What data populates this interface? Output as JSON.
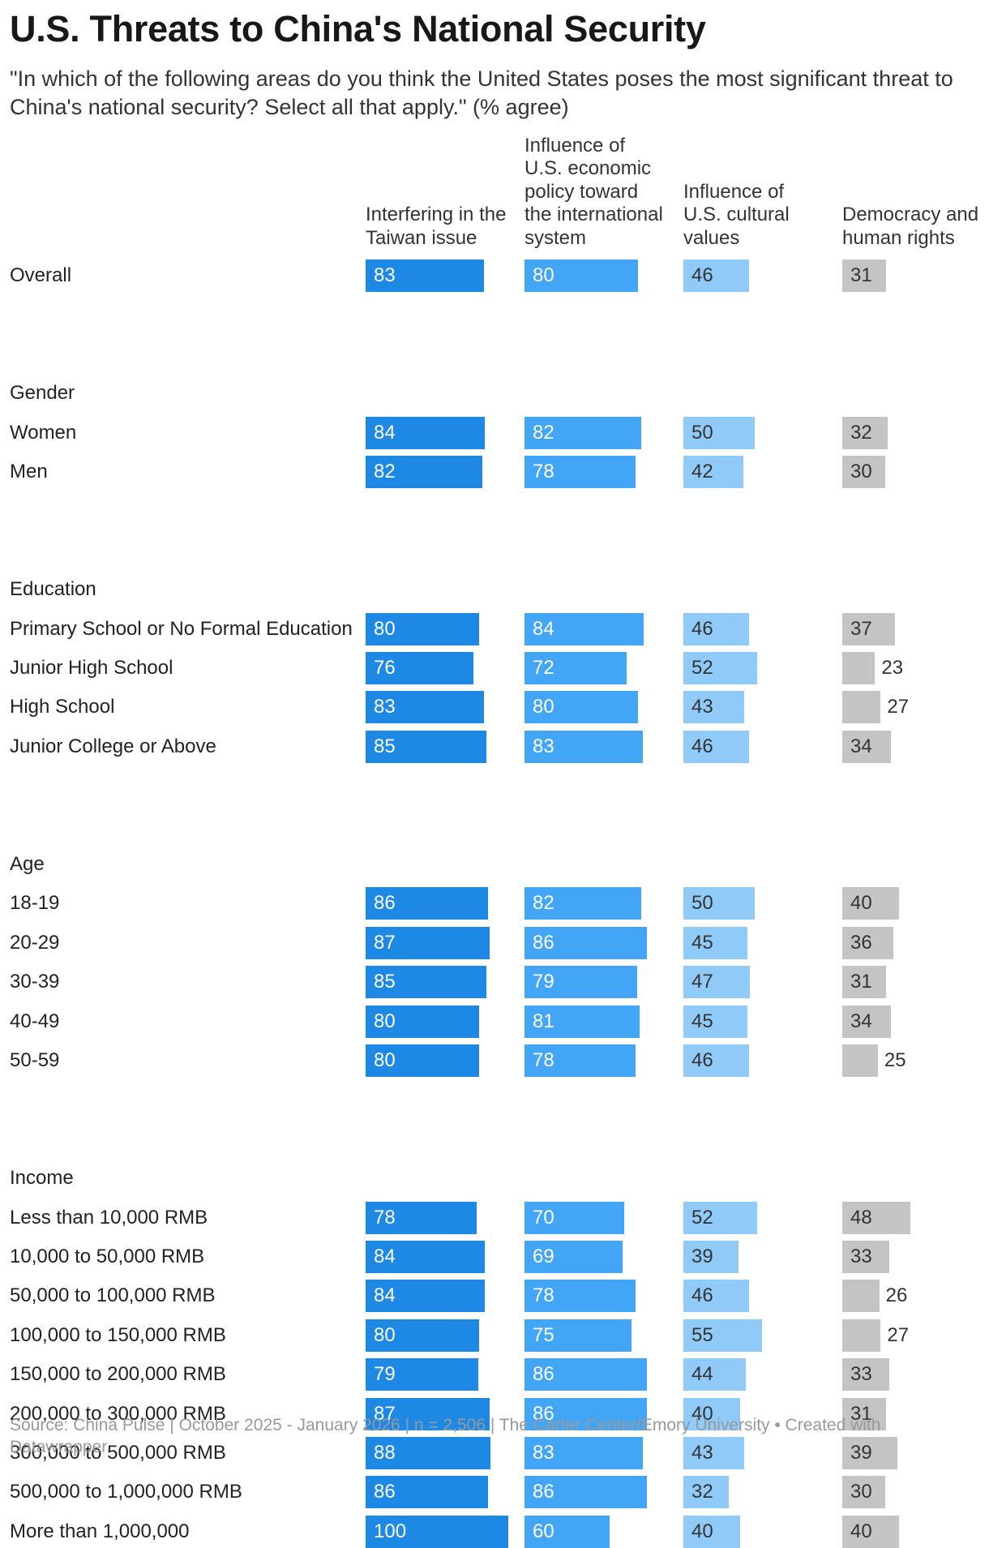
{
  "title": "U.S. Threats to China's National Security",
  "subtitle": "\"In which of the following areas do you think the United States poses the most significant threat to China's national security? Select all that apply.\" (% agree)",
  "footer": "Source: China Pulse | October 2025 - January 2026 | n = 2,506 | The Carter Center/Emory University • Created with Datawrapper",
  "chart_data": {
    "type": "bar",
    "layout": "small-multiples horizontal bars",
    "unit": "% agree",
    "series": [
      {
        "name": "Interfering in the Taiwan issue",
        "color": "#1e88e5",
        "text_color": "#ffffff"
      },
      {
        "name": "Influence of U.S. economic policy toward the international system",
        "color": "#42a5f5",
        "text_color": "#ffffff"
      },
      {
        "name": "Influence of U.S. cultural values",
        "color": "#90caf9",
        "text_color": "#333333"
      },
      {
        "name": "Democracy and human rights",
        "color": "#c4c4c4",
        "text_color": "#333333"
      }
    ],
    "groups": [
      {
        "label": "",
        "rows": [
          {
            "label": "Overall",
            "values": [
              83,
              80,
              46,
              31
            ]
          }
        ]
      },
      {
        "label": "Gender",
        "rows": [
          {
            "label": "Women",
            "values": [
              84,
              82,
              50,
              32
            ]
          },
          {
            "label": "Men",
            "values": [
              82,
              78,
              42,
              30
            ]
          }
        ]
      },
      {
        "label": "Education",
        "rows": [
          {
            "label": "Primary School or No Formal Education",
            "values": [
              80,
              84,
              46,
              37
            ]
          },
          {
            "label": "Junior High School",
            "values": [
              76,
              72,
              52,
              23
            ]
          },
          {
            "label": "High School",
            "values": [
              83,
              80,
              43,
              27
            ]
          },
          {
            "label": "Junior College or Above",
            "values": [
              85,
              83,
              46,
              34
            ]
          }
        ]
      },
      {
        "label": "Age",
        "rows": [
          {
            "label": "18-19",
            "values": [
              86,
              82,
              50,
              40
            ]
          },
          {
            "label": "20-29",
            "values": [
              87,
              86,
              45,
              36
            ]
          },
          {
            "label": "30-39",
            "values": [
              85,
              79,
              47,
              31
            ]
          },
          {
            "label": "40-49",
            "values": [
              80,
              81,
              45,
              34
            ]
          },
          {
            "label": "50-59",
            "values": [
              80,
              78,
              46,
              25
            ]
          }
        ]
      },
      {
        "label": "Income",
        "rows": [
          {
            "label": "Less than 10,000 RMB",
            "values": [
              78,
              70,
              52,
              48
            ]
          },
          {
            "label": "10,000 to 50,000 RMB",
            "values": [
              84,
              69,
              39,
              33
            ]
          },
          {
            "label": "50,000 to 100,000 RMB",
            "values": [
              84,
              78,
              46,
              26
            ]
          },
          {
            "label": "100,000 to 150,000 RMB",
            "values": [
              80,
              75,
              55,
              27
            ]
          },
          {
            "label": "150,000 to 200,000 RMB",
            "values": [
              79,
              86,
              44,
              33
            ]
          },
          {
            "label": "200,000 to 300,000 RMB",
            "values": [
              87,
              86,
              40,
              31
            ]
          },
          {
            "label": "300,000 to 500,000 RMB",
            "values": [
              88,
              83,
              43,
              39
            ]
          },
          {
            "label": "500,000 to 1,000,000 RMB",
            "values": [
              86,
              86,
              32,
              30
            ]
          },
          {
            "label": "More than 1,000,000",
            "values": [
              100,
              60,
              40,
              40
            ]
          }
        ]
      }
    ]
  }
}
